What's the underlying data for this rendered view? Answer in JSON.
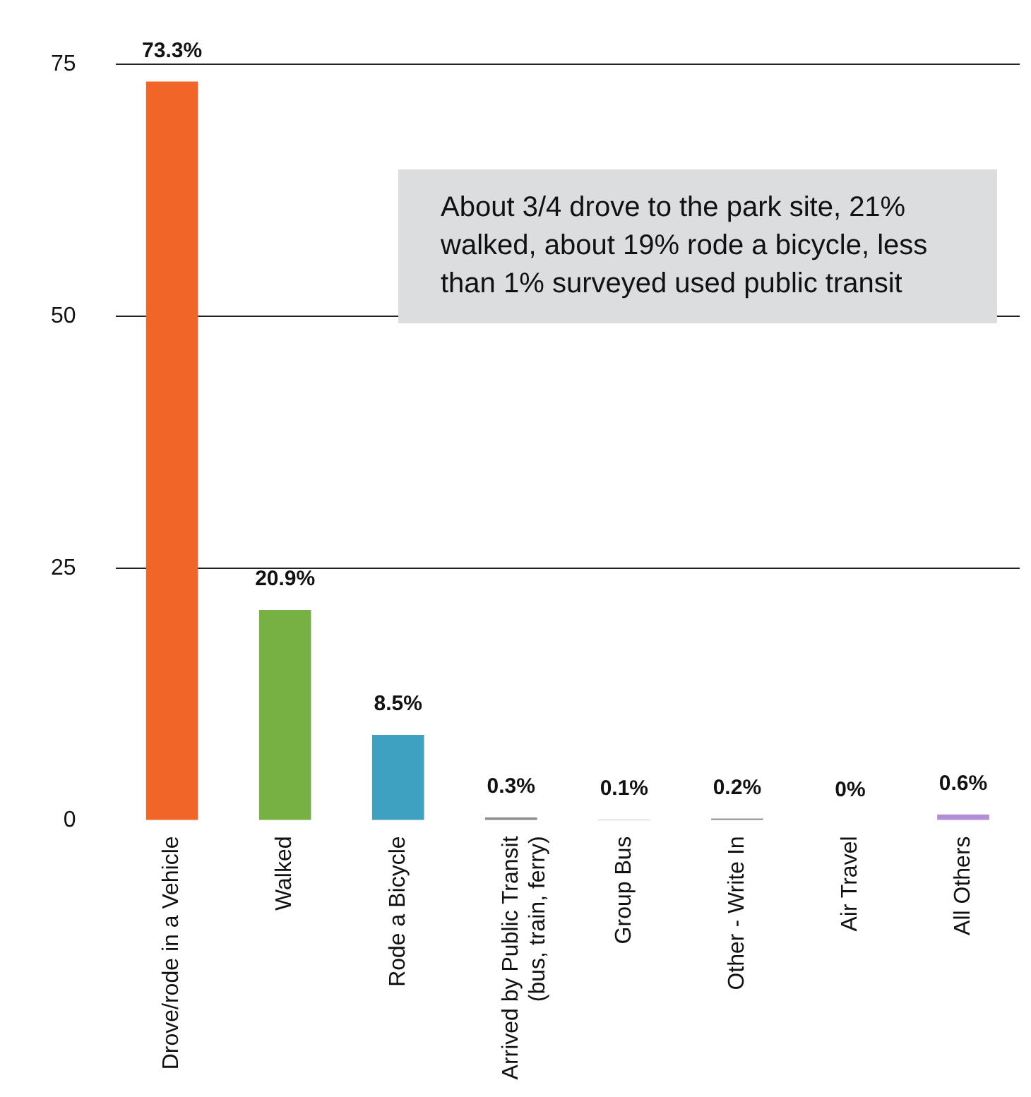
{
  "chart_data": {
    "type": "bar",
    "categories": [
      "Drove/rode in a Vehicle",
      "Walked",
      "Rode a Bicycle",
      "Arrived by Public Transit\n(bus, train, ferry)",
      "Group Bus",
      "Other - Write In",
      "Air Travel",
      "All Others"
    ],
    "values": [
      73.3,
      20.9,
      8.5,
      0.3,
      0.1,
      0.2,
      0,
      0.6
    ],
    "colors": [
      "#f26529",
      "#77b043",
      "#3fa1c2",
      "#8c8c8c",
      "#8c8c8c",
      "#8c8c8c",
      "#8c8c8c",
      "#b48fd8"
    ],
    "value_labels": [
      "73.3%",
      "20.9%",
      "8.5%",
      "0.3%",
      "0.1%",
      "0.2%",
      "0%",
      "0.6%"
    ],
    "ylim": [
      0,
      75
    ],
    "yticks": [
      0,
      25,
      50,
      75
    ],
    "grid": "y",
    "annotations": [
      "About 3/4 drove to the park site, 21% walked, about 19% rode a bicycle, less than 1% surveyed used public transit"
    ]
  }
}
